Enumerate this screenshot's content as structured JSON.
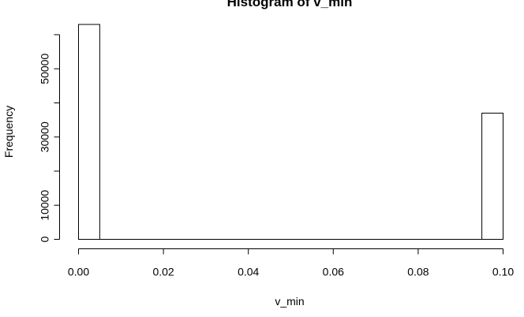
{
  "chart_data": {
    "type": "bar",
    "title": "Histogram of v_min",
    "xlabel": "v_min",
    "ylabel": "Frequency",
    "bin_width": 0.005,
    "bins": [
      {
        "start": 0.0,
        "end": 0.005,
        "count": 63000
      },
      {
        "start": 0.005,
        "end": 0.01,
        "count": 0
      },
      {
        "start": 0.01,
        "end": 0.015,
        "count": 0
      },
      {
        "start": 0.015,
        "end": 0.02,
        "count": 0
      },
      {
        "start": 0.02,
        "end": 0.025,
        "count": 0
      },
      {
        "start": 0.025,
        "end": 0.03,
        "count": 0
      },
      {
        "start": 0.03,
        "end": 0.035,
        "count": 0
      },
      {
        "start": 0.035,
        "end": 0.04,
        "count": 0
      },
      {
        "start": 0.04,
        "end": 0.045,
        "count": 0
      },
      {
        "start": 0.045,
        "end": 0.05,
        "count": 0
      },
      {
        "start": 0.05,
        "end": 0.055,
        "count": 0
      },
      {
        "start": 0.055,
        "end": 0.06,
        "count": 0
      },
      {
        "start": 0.06,
        "end": 0.065,
        "count": 0
      },
      {
        "start": 0.065,
        "end": 0.07,
        "count": 0
      },
      {
        "start": 0.07,
        "end": 0.075,
        "count": 0
      },
      {
        "start": 0.075,
        "end": 0.08,
        "count": 0
      },
      {
        "start": 0.08,
        "end": 0.085,
        "count": 0
      },
      {
        "start": 0.085,
        "end": 0.09,
        "count": 0
      },
      {
        "start": 0.09,
        "end": 0.095,
        "count": 0
      },
      {
        "start": 0.095,
        "end": 0.1,
        "count": 37000
      }
    ],
    "xlim": [
      0,
      0.1
    ],
    "ylim": [
      0,
      63000
    ],
    "x_ticks": [
      0.0,
      0.02,
      0.04,
      0.06,
      0.08,
      0.1
    ],
    "x_tick_labels": [
      "0.00",
      "0.02",
      "0.04",
      "0.06",
      "0.08",
      "0.10"
    ],
    "y_ticks": [
      0,
      10000,
      30000,
      50000
    ],
    "y_tick_labels": [
      "0",
      "10000",
      "30000",
      "50000"
    ],
    "y_minor_ticks": [
      20000,
      40000,
      60000
    ],
    "grid": false,
    "legend": "none",
    "bar_fill": "#ffffff",
    "bar_stroke": "#000000"
  }
}
